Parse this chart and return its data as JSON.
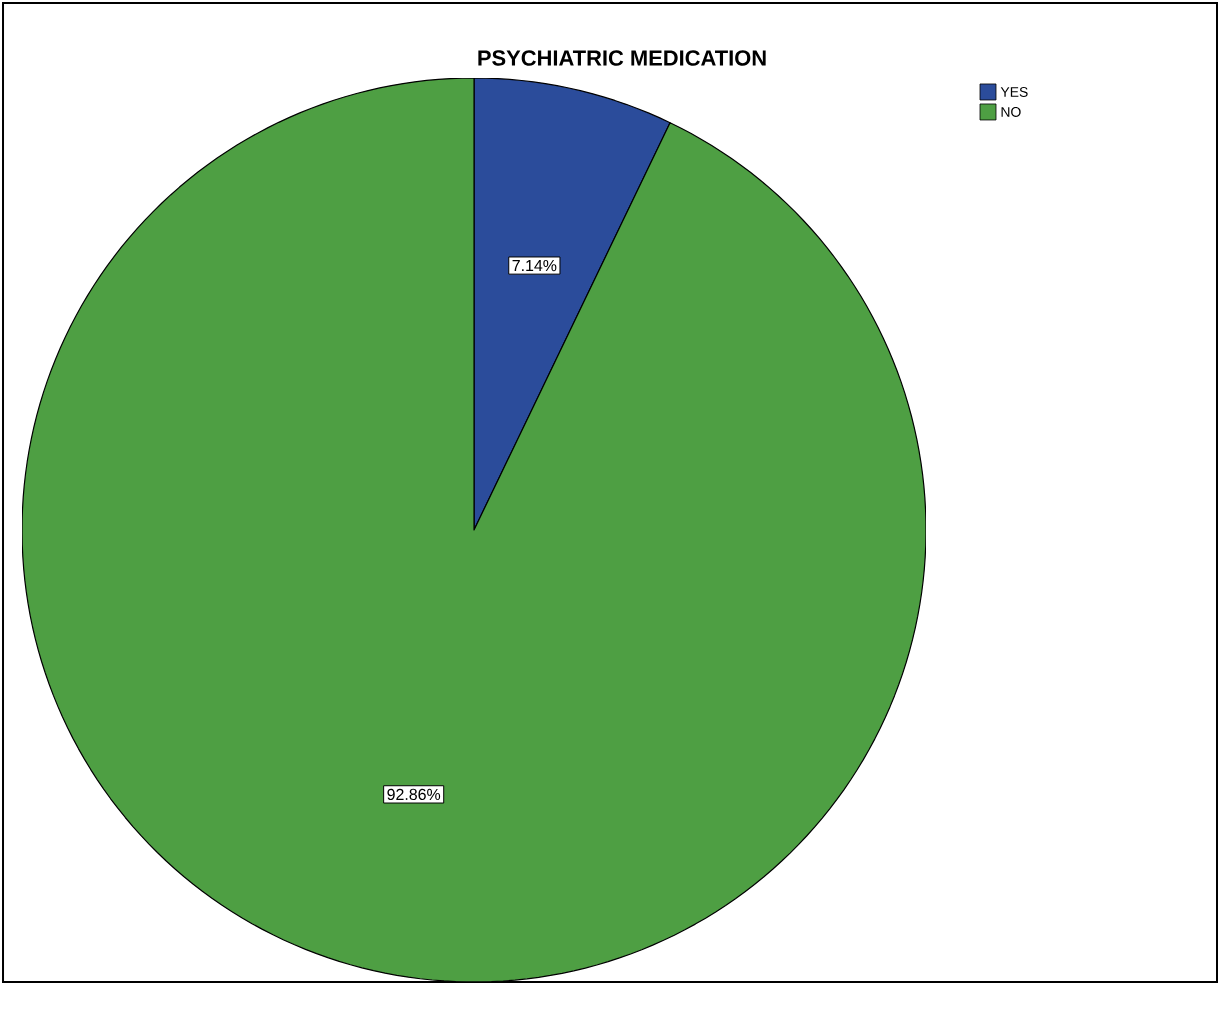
{
  "chart_data": {
    "type": "pie",
    "title": "PSYCHIATRIC MEDICATION",
    "categories": [
      "YES",
      "NO"
    ],
    "values": [
      7.14,
      92.86
    ],
    "value_labels": [
      "7.14%",
      "92.86%"
    ],
    "colors": [
      "#2b4c9b",
      "#4e9f43"
    ],
    "legend": "top right"
  }
}
